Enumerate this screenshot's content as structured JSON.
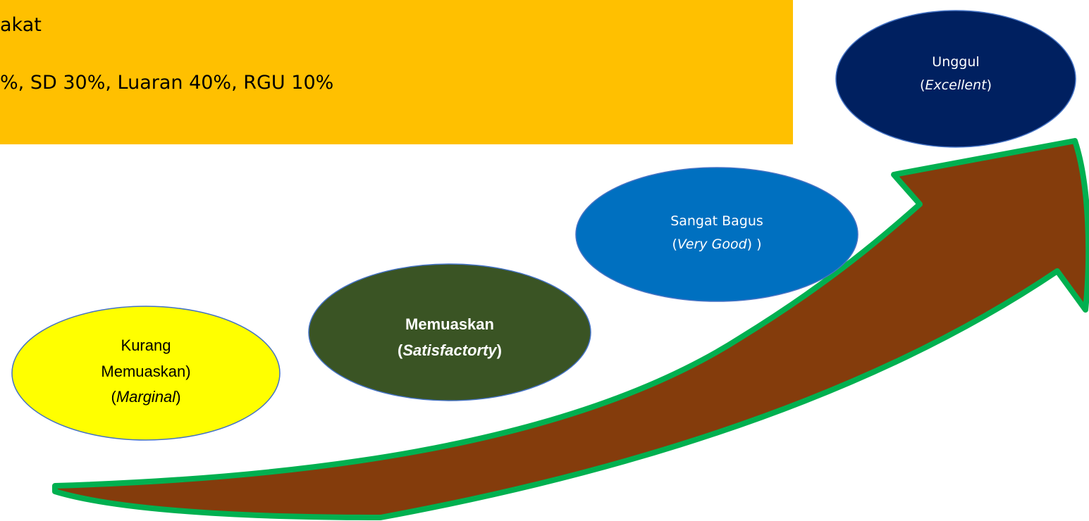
{
  "header": {
    "lines": [
      "akat",
      "%, SD 30%, Luaran 40%, RGU 10%"
    ]
  },
  "nodes": [
    {
      "lines": [
        [
          "Kurang"
        ],
        [
          "Memuaskan)"
        ],
        [
          "(",
          "Marginal",
          ")"
        ]
      ]
    },
    {
      "lines": [
        [
          "Memuaskan"
        ],
        [
          "(",
          "Satisfactorty",
          ")"
        ]
      ]
    },
    {
      "lines": [
        [
          "Sangat Bagus"
        ],
        [
          "(",
          "Very Good",
          ") )"
        ]
      ]
    },
    {
      "lines": [
        [
          "Unggul"
        ],
        [
          "(",
          "Excellent",
          ")"
        ]
      ]
    }
  ]
}
